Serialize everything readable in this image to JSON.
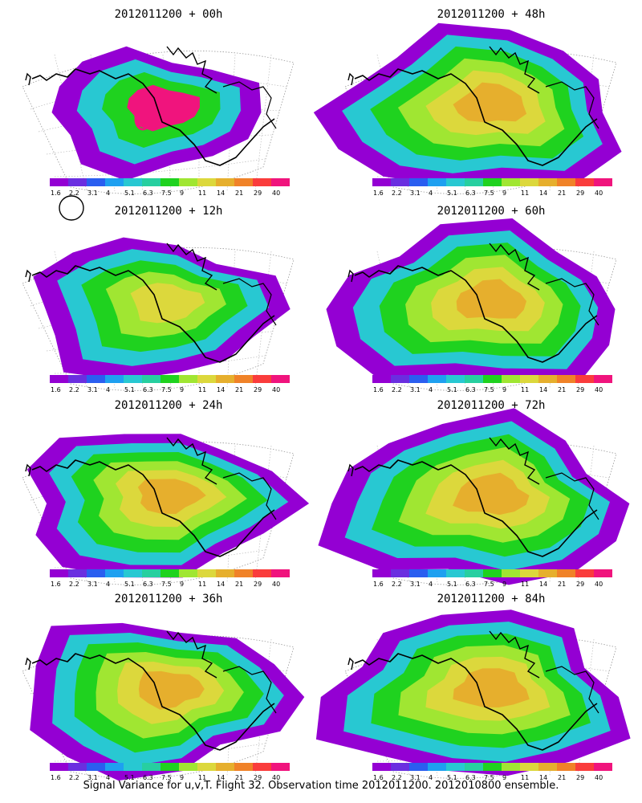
{
  "panels": [
    {
      "title": "2012011200 + 00h"
    },
    {
      "title": "2012011200 + 48h"
    },
    {
      "title": "2012011200 + 12h"
    },
    {
      "title": "2012011200 + 60h"
    },
    {
      "title": "2012011200 + 24h"
    },
    {
      "title": "2012011200 + 72h"
    },
    {
      "title": "2012011200 + 36h"
    },
    {
      "title": "2012011200 + 84h"
    }
  ],
  "colorbar": {
    "labels": [
      "1.6",
      "2.2",
      "3.1",
      "4",
      "5.1",
      "6.3",
      "7.5",
      "9",
      "11",
      "14",
      "21",
      "29",
      "40"
    ],
    "colors": [
      "#9400d3",
      "#6a2ee0",
      "#2a5ef0",
      "#1ea0f0",
      "#28c8d2",
      "#27cfa0",
      "#1fd21f",
      "#a0e632",
      "#dcd83c",
      "#e6af2d",
      "#f08228",
      "#fa3c3c",
      "#f0147d"
    ]
  },
  "caption": "Signal Variance for u,v,T. Flight 32. Observation time 2012011200. 2012010800 ensemble."
}
